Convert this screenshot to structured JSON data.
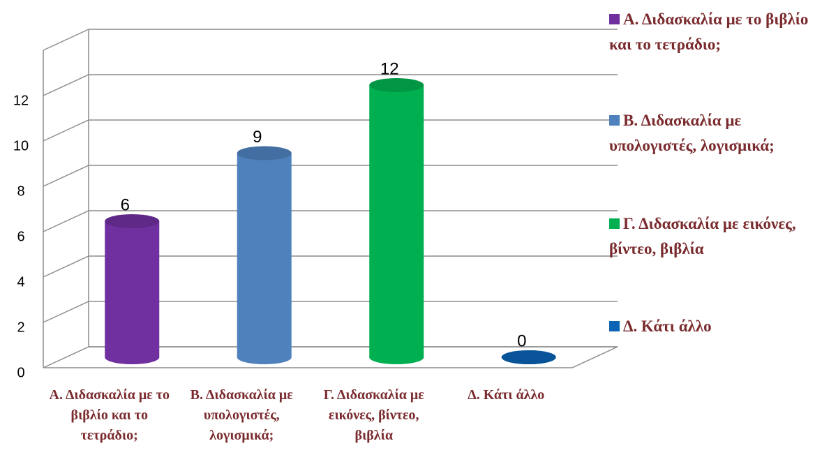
{
  "chart_data": {
    "type": "bar",
    "categories": [
      "Α. Διδασκαλία με το βιβλίο και το τετράδιο;",
      "Β. Διδασκαλία με υπολογιστές, λογισμικά;",
      "Γ. Διδασκαλία με εικόνες, βίντεο, βιβλία",
      "Δ.  Κάτι άλλο"
    ],
    "values": [
      6,
      9,
      12,
      0
    ],
    "colors": [
      "#7030a0",
      "#4f81bd",
      "#00b050",
      "#0b63b3"
    ],
    "ylim": [
      0,
      14
    ],
    "yticks": [
      0,
      2,
      4,
      6,
      8,
      10,
      12
    ],
    "grid": true,
    "legend": "right"
  }
}
